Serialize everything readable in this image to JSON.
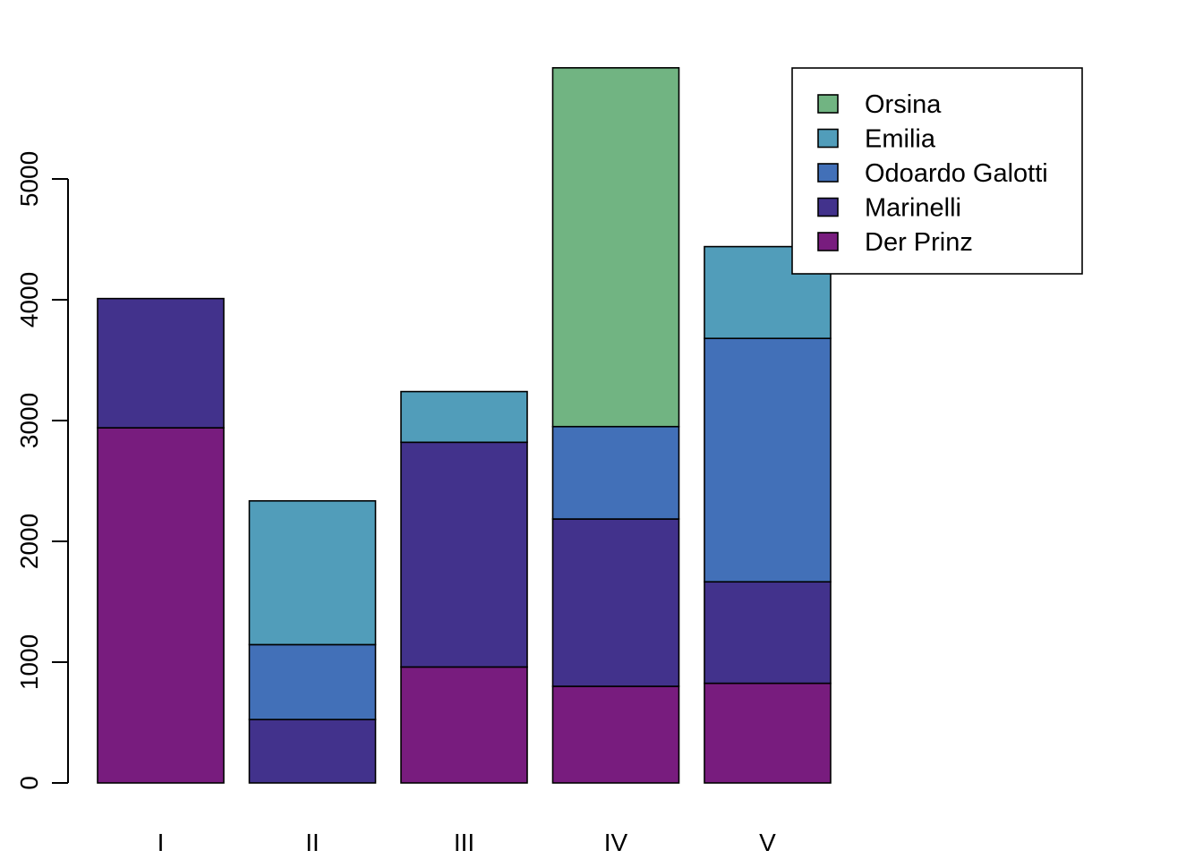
{
  "chart_data": {
    "type": "bar",
    "stacked": true,
    "title": "",
    "xlabel": "",
    "ylabel": "",
    "categories": [
      "I",
      "II",
      "III",
      "IV",
      "V"
    ],
    "ylim": [
      0,
      6000
    ],
    "yticks": [
      0,
      1000,
      2000,
      3000,
      4000,
      5000
    ],
    "grid": false,
    "legend_position": "top-right",
    "series": [
      {
        "name": "Der Prinz",
        "color": "#781c7e",
        "values": [
          2940,
          0,
          960,
          800,
          825
        ]
      },
      {
        "name": "Marinelli",
        "color": "#42328c",
        "values": [
          1070,
          525,
          1860,
          1385,
          840
        ]
      },
      {
        "name": "Odoardo Galotti",
        "color": "#4270b8",
        "values": [
          0,
          620,
          0,
          765,
          2015
        ]
      },
      {
        "name": "Emilia",
        "color": "#519dba",
        "values": [
          0,
          1190,
          420,
          0,
          760
        ]
      },
      {
        "name": "Orsina",
        "color": "#71b482",
        "values": [
          0,
          0,
          0,
          2970,
          0
        ]
      }
    ],
    "legend_order": [
      "Orsina",
      "Emilia",
      "Odoardo Galotti",
      "Marinelli",
      "Der Prinz"
    ]
  }
}
